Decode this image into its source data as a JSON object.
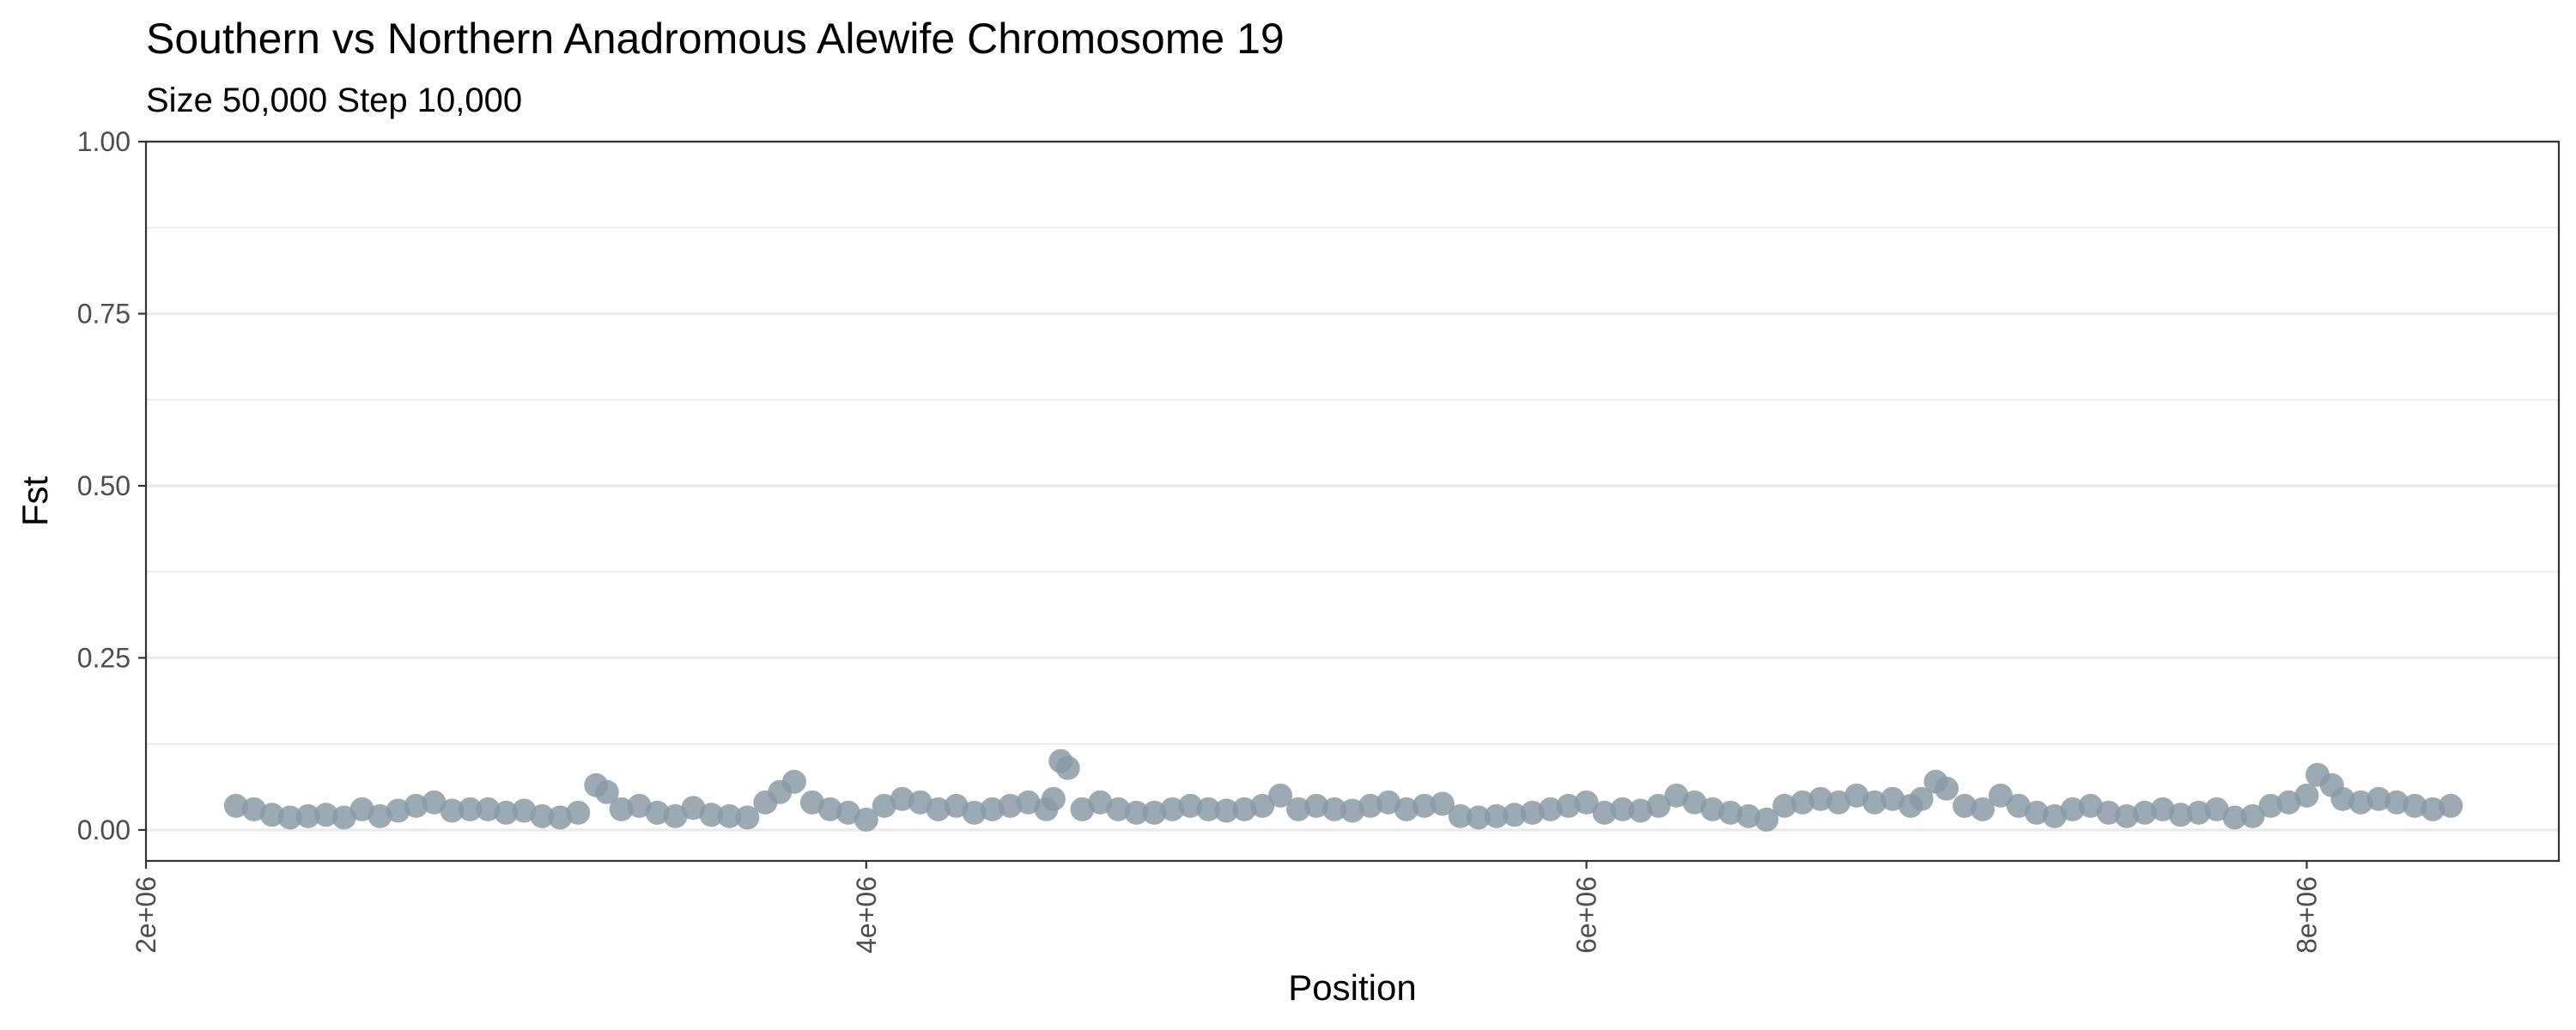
{
  "chart_data": {
    "type": "scatter",
    "title": "Southern vs Northern Anadromous Alewife Chromosome 19",
    "subtitle": "Size 50,000 Step 10,000",
    "xlabel": "Position",
    "ylabel": "Fst",
    "xlim": [
      2000000,
      8700000
    ],
    "ylim": [
      -0.045,
      1.0
    ],
    "x_ticks": [
      2000000,
      4000000,
      6000000,
      8000000
    ],
    "x_tick_labels": [
      "2e+06",
      "4e+06",
      "6e+06",
      "8e+06"
    ],
    "y_ticks": [
      0.0,
      0.25,
      0.5,
      0.75,
      1.0
    ],
    "y_tick_labels": [
      "0.00",
      "0.25",
      "0.50",
      "0.75",
      "1.00"
    ],
    "grid": true,
    "legend": "none",
    "point_color": "#8a9ba6",
    "series": [
      {
        "x": [
          2250000,
          2300000,
          2350000,
          2400000,
          2450000,
          2500000,
          2550000,
          2600000,
          2650000,
          2700000,
          2750000,
          2800000,
          2850000,
          2900000,
          2950000,
          3000000,
          3050000,
          3100000,
          3150000,
          3200000,
          3250000,
          3280000,
          3320000,
          3370000,
          3420000,
          3470000,
          3520000,
          3570000,
          3620000,
          3670000,
          3720000,
          3760000,
          3800000,
          3850000,
          3900000,
          3950000,
          4000000,
          4050000,
          4100000,
          4150000,
          4200000,
          4250000,
          4300000,
          4350000,
          4400000,
          4450000,
          4500000,
          4520000,
          4540000,
          4560000,
          4600000,
          4650000,
          4700000,
          4750000,
          4800000,
          4850000,
          4900000,
          4950000,
          5000000,
          5050000,
          5100000,
          5150000,
          5200000,
          5250000,
          5300000,
          5350000,
          5400000,
          5450000,
          5500000,
          5550000,
          5600000,
          5650000,
          5700000,
          5750000,
          5800000,
          5850000,
          5900000,
          5950000,
          6000000,
          6050000,
          6100000,
          6150000,
          6200000,
          6250000,
          6300000,
          6350000,
          6400000,
          6450000,
          6500000,
          6550000,
          6600000,
          6650000,
          6700000,
          6750000,
          6800000,
          6850000,
          6900000,
          6930000,
          6970000,
          7000000,
          7050000,
          7100000,
          7150000,
          7200000,
          7250000,
          7300000,
          7350000,
          7400000,
          7450000,
          7500000,
          7550000,
          7600000,
          7650000,
          7700000,
          7750000,
          7800000,
          7850000,
          7900000,
          7950000,
          8000000,
          8030000,
          8070000,
          8100000,
          8150000,
          8200000,
          8250000,
          8300000,
          8350000,
          8400000
        ],
        "y": [
          0.035,
          0.03,
          0.022,
          0.018,
          0.02,
          0.022,
          0.018,
          0.03,
          0.02,
          0.028,
          0.035,
          0.04,
          0.028,
          0.03,
          0.03,
          0.025,
          0.028,
          0.02,
          0.018,
          0.025,
          0.065,
          0.055,
          0.03,
          0.035,
          0.025,
          0.02,
          0.032,
          0.022,
          0.02,
          0.018,
          0.04,
          0.055,
          0.07,
          0.04,
          0.03,
          0.025,
          0.015,
          0.035,
          0.045,
          0.04,
          0.03,
          0.035,
          0.025,
          0.03,
          0.035,
          0.04,
          0.03,
          0.045,
          0.1,
          0.09,
          0.03,
          0.04,
          0.03,
          0.025,
          0.025,
          0.03,
          0.035,
          0.03,
          0.028,
          0.03,
          0.035,
          0.05,
          0.03,
          0.035,
          0.03,
          0.028,
          0.035,
          0.04,
          0.03,
          0.035,
          0.038,
          0.02,
          0.018,
          0.02,
          0.022,
          0.025,
          0.03,
          0.035,
          0.04,
          0.025,
          0.03,
          0.028,
          0.035,
          0.05,
          0.04,
          0.03,
          0.025,
          0.02,
          0.015,
          0.035,
          0.04,
          0.045,
          0.04,
          0.05,
          0.04,
          0.045,
          0.035,
          0.045,
          0.07,
          0.06,
          0.035,
          0.03,
          0.05,
          0.035,
          0.025,
          0.02,
          0.03,
          0.035,
          0.025,
          0.02,
          0.025,
          0.03,
          0.022,
          0.025,
          0.03,
          0.018,
          0.02,
          0.035,
          0.04,
          0.05,
          0.08,
          0.065,
          0.045,
          0.04,
          0.045,
          0.04,
          0.035,
          0.03,
          0.035
        ]
      }
    ]
  }
}
